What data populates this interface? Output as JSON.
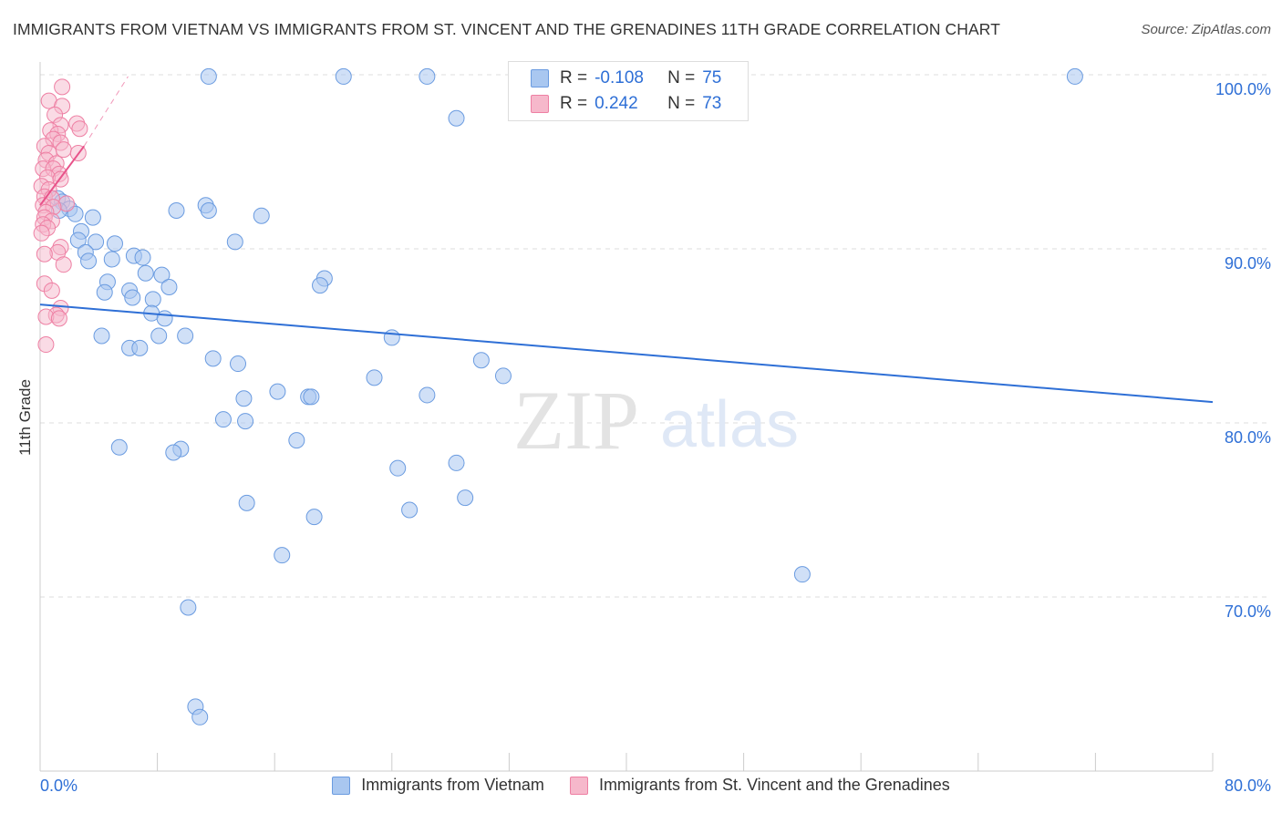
{
  "title": "IMMIGRANTS FROM VIETNAM VS IMMIGRANTS FROM ST. VINCENT AND THE GRENADINES 11TH GRADE CORRELATION CHART",
  "source": "Source: ZipAtlas.com",
  "watermark": {
    "zip": "ZIP",
    "atlas": "atlas"
  },
  "legend": {
    "r_label": "R =",
    "n_label": "N =",
    "series1": {
      "r": "-0.108",
      "n": "75"
    },
    "series2": {
      "r": "0.242",
      "n": "73"
    }
  },
  "bottom_legend": {
    "series1": "Immigrants from Vietnam",
    "series2": "Immigrants from St. Vincent and the Grenadines"
  },
  "colors": {
    "series1_fill": "#a9c7f0",
    "series1_stroke": "#6a9be0",
    "series1_line": "#2e6fd6",
    "series2_fill": "#f6b8cb",
    "series2_stroke": "#ee7fa3",
    "series2_line": "#e8538a",
    "axis_text": "#2e6fd6",
    "grid": "#dddddd"
  },
  "chart_data": {
    "type": "scatter",
    "title": "IMMIGRANTS FROM VIETNAM VS IMMIGRANTS FROM ST. VINCENT AND THE GRENADINES 11TH GRADE CORRELATION CHART",
    "xlabel": "",
    "ylabel": "11th Grade",
    "xlim": [
      0,
      80
    ],
    "ylim": [
      62.5,
      101
    ],
    "x_tick_labels": [
      "0.0%",
      "80.0%"
    ],
    "y_ticks": [
      {
        "value": 100,
        "label": "100.0%"
      },
      {
        "value": 90,
        "label": "90.0%"
      },
      {
        "value": 80,
        "label": "80.0%"
      },
      {
        "value": 70,
        "label": "70.0%"
      }
    ],
    "grid": true,
    "legend_position": "top-center",
    "series": [
      {
        "name": "Immigrants from Vietnam",
        "r": -0.108,
        "n": 75,
        "trend": [
          [
            0,
            86.8
          ],
          [
            80,
            81.2
          ]
        ],
        "points": [
          [
            11.5,
            99.9
          ],
          [
            20.7,
            99.9
          ],
          [
            26.4,
            99.9
          ],
          [
            70.6,
            99.9
          ],
          [
            28.4,
            97.5
          ],
          [
            1.2,
            92.9
          ],
          [
            1.5,
            92.7
          ],
          [
            2.0,
            92.3
          ],
          [
            2.4,
            92.0
          ],
          [
            1.3,
            92.2
          ],
          [
            9.3,
            92.2
          ],
          [
            11.3,
            92.5
          ],
          [
            11.5,
            92.2
          ],
          [
            15.1,
            91.9
          ],
          [
            3.6,
            91.8
          ],
          [
            2.8,
            91.0
          ],
          [
            2.6,
            90.5
          ],
          [
            3.8,
            90.4
          ],
          [
            5.1,
            90.3
          ],
          [
            13.3,
            90.4
          ],
          [
            3.1,
            89.8
          ],
          [
            6.4,
            89.6
          ],
          [
            7.0,
            89.5
          ],
          [
            3.3,
            89.3
          ],
          [
            4.9,
            89.4
          ],
          [
            7.2,
            88.6
          ],
          [
            8.3,
            88.5
          ],
          [
            19.4,
            88.3
          ],
          [
            4.6,
            88.1
          ],
          [
            19.1,
            87.9
          ],
          [
            8.8,
            87.8
          ],
          [
            4.4,
            87.5
          ],
          [
            6.1,
            87.6
          ],
          [
            6.3,
            87.2
          ],
          [
            7.7,
            87.1
          ],
          [
            7.6,
            86.3
          ],
          [
            8.5,
            86.0
          ],
          [
            4.2,
            85.0
          ],
          [
            8.1,
            85.0
          ],
          [
            9.9,
            85.0
          ],
          [
            24.0,
            84.9
          ],
          [
            6.1,
            84.3
          ],
          [
            6.8,
            84.3
          ],
          [
            11.8,
            83.7
          ],
          [
            13.5,
            83.4
          ],
          [
            30.1,
            83.6
          ],
          [
            22.8,
            82.6
          ],
          [
            31.6,
            82.7
          ],
          [
            16.2,
            81.8
          ],
          [
            18.3,
            81.5
          ],
          [
            18.5,
            81.5
          ],
          [
            26.4,
            81.6
          ],
          [
            13.9,
            81.4
          ],
          [
            12.5,
            80.2
          ],
          [
            14.0,
            80.1
          ],
          [
            17.5,
            79.0
          ],
          [
            5.4,
            78.6
          ],
          [
            9.6,
            78.5
          ],
          [
            9.1,
            78.3
          ],
          [
            28.4,
            77.7
          ],
          [
            24.4,
            77.4
          ],
          [
            29.0,
            75.7
          ],
          [
            14.1,
            75.4
          ],
          [
            25.2,
            75.0
          ],
          [
            18.7,
            74.6
          ],
          [
            16.5,
            72.4
          ],
          [
            52.0,
            71.3
          ],
          [
            10.1,
            69.4
          ],
          [
            10.6,
            63.7
          ],
          [
            10.9,
            63.1
          ]
        ]
      },
      {
        "name": "Immigrants from St. Vincent and the Grenadines",
        "r": 0.242,
        "n": 73,
        "trend": [
          [
            0,
            92.5
          ],
          [
            3.0,
            95.9
          ]
        ],
        "trend_ext": [
          [
            3.0,
            95.9
          ],
          [
            6.0,
            99.9
          ]
        ],
        "points": [
          [
            1.5,
            99.3
          ],
          [
            0.6,
            98.5
          ],
          [
            1.5,
            98.2
          ],
          [
            1.0,
            97.7
          ],
          [
            2.5,
            97.2
          ],
          [
            1.4,
            97.1
          ],
          [
            2.7,
            96.9
          ],
          [
            0.7,
            96.8
          ],
          [
            1.2,
            96.6
          ],
          [
            0.9,
            96.3
          ],
          [
            1.4,
            96.1
          ],
          [
            0.3,
            95.9
          ],
          [
            1.6,
            95.7
          ],
          [
            0.6,
            95.5
          ],
          [
            2.6,
            95.5
          ],
          [
            0.4,
            95.1
          ],
          [
            1.1,
            94.9
          ],
          [
            0.2,
            94.6
          ],
          [
            0.9,
            94.6
          ],
          [
            1.3,
            94.3
          ],
          [
            0.5,
            94.1
          ],
          [
            1.4,
            94.0
          ],
          [
            0.1,
            93.6
          ],
          [
            0.6,
            93.4
          ],
          [
            0.3,
            93.0
          ],
          [
            0.8,
            92.9
          ],
          [
            1.8,
            92.6
          ],
          [
            0.2,
            92.5
          ],
          [
            0.9,
            92.4
          ],
          [
            0.4,
            92.1
          ],
          [
            0.3,
            91.8
          ],
          [
            0.8,
            91.6
          ],
          [
            0.2,
            91.4
          ],
          [
            0.5,
            91.2
          ],
          [
            0.1,
            90.9
          ],
          [
            1.4,
            90.1
          ],
          [
            1.2,
            89.8
          ],
          [
            0.3,
            89.7
          ],
          [
            1.6,
            89.1
          ],
          [
            0.3,
            88.0
          ],
          [
            0.8,
            87.6
          ],
          [
            1.4,
            86.6
          ],
          [
            1.1,
            86.2
          ],
          [
            0.4,
            86.1
          ],
          [
            1.3,
            86.0
          ],
          [
            0.4,
            84.5
          ]
        ]
      }
    ]
  }
}
